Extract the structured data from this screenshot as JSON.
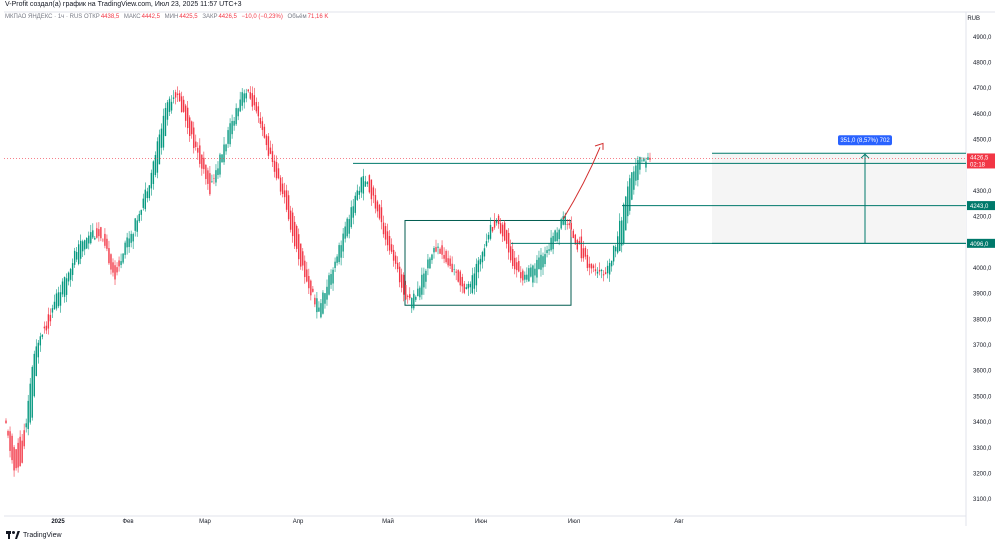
{
  "header": {
    "text": "V-Profit создал(а) график на TradingView.com, Июл 23, 2025 11:57 UTC+3"
  },
  "legend": {
    "symbol": "МКПАО ЯНДЕКС · 1ч · RUS",
    "open_label": "ОТКР",
    "open": "4438,5",
    "high_label": "МАКС",
    "high": "4442,5",
    "low_label": "МИН",
    "low": "4425,5",
    "close_label": "ЗАКР",
    "close": "4426,5",
    "change": "−10,0 (−0,23%)",
    "volume_label": "Объём",
    "volume": "71,16 K"
  },
  "currency": "RUB",
  "footer": {
    "brand": "TradingView"
  },
  "colors": {
    "up": "#089981",
    "down": "#f23645",
    "level": "#00796b",
    "measure_bg": "#2962ff",
    "grid": "#f0f3fa",
    "axis_text": "#131722"
  },
  "chart_data": {
    "type": "candlestick",
    "ylim": [
      3050,
      4950
    ],
    "y_ticks": [
      "3100,0",
      "3200,0",
      "3300,0",
      "3400,0",
      "3500,0",
      "3600,0",
      "3700,0",
      "3800,0",
      "3900,0",
      "4000,0",
      "4100,0",
      "4200,0",
      "4300,0",
      "4400,0",
      "4500,0",
      "4600,0",
      "4700,0",
      "4800,0",
      "4900,0"
    ],
    "y_tick_values": [
      3100,
      3200,
      3300,
      3400,
      3500,
      3600,
      3700,
      3800,
      3900,
      4000,
      4100,
      4200,
      4300,
      4400,
      4500,
      4600,
      4700,
      4800,
      4900
    ],
    "x_labels": [
      "2025",
      "Фев",
      "Мар",
      "Апр",
      "Май",
      "Июн",
      "Июл",
      "Авг"
    ],
    "price_series": [
      [
        3400,
        3380
      ],
      [
        3300,
        3200
      ],
      [
        3350,
        3250
      ],
      [
        3400,
        3600
      ],
      [
        3700,
        3750
      ],
      [
        3800,
        3780
      ],
      [
        3850,
        3900
      ],
      [
        3900,
        3950
      ],
      [
        4000,
        4050
      ],
      [
        4050,
        4100
      ],
      [
        4100,
        4150
      ],
      [
        4150,
        4120
      ],
      [
        4100,
        4050
      ],
      [
        4000,
        3950
      ],
      [
        4050,
        4100
      ],
      [
        4100,
        4150
      ],
      [
        4200,
        4250
      ],
      [
        4300,
        4350
      ],
      [
        4400,
        4500
      ],
      [
        4550,
        4650
      ],
      [
        4700,
        4680
      ],
      [
        4650,
        4600
      ],
      [
        4550,
        4500
      ],
      [
        4450,
        4400
      ],
      [
        4350,
        4300
      ],
      [
        4350,
        4400
      ],
      [
        4450,
        4500
      ],
      [
        4550,
        4600
      ],
      [
        4650,
        4700
      ],
      [
        4700,
        4650
      ],
      [
        4600,
        4550
      ],
      [
        4500,
        4450
      ],
      [
        4400,
        4350
      ],
      [
        4300,
        4250
      ],
      [
        4200,
        4100
      ],
      [
        4050,
        4000
      ],
      [
        3950,
        3900
      ],
      [
        3800,
        3850
      ],
      [
        3900,
        3950
      ],
      [
        4000,
        4050
      ],
      [
        4100,
        4150
      ],
      [
        4200,
        4250
      ],
      [
        4300,
        4350
      ],
      [
        4350,
        4300
      ],
      [
        4250,
        4200
      ],
      [
        4150,
        4100
      ],
      [
        4050,
        4000
      ],
      [
        3950,
        3900
      ],
      [
        3850,
        3880
      ],
      [
        3900,
        3950
      ],
      [
        4000,
        4050
      ],
      [
        4100,
        4080
      ],
      [
        4050,
        4020
      ],
      [
        4000,
        3980
      ],
      [
        3950,
        3920
      ],
      [
        3900,
        3950
      ],
      [
        4000,
        4050
      ],
      [
        4100,
        4150
      ],
      [
        4200,
        4180
      ],
      [
        4150,
        4100
      ],
      [
        4050,
        4000
      ],
      [
        3980,
        3960
      ],
      [
        3950,
        3990
      ],
      [
        4000,
        4030
      ],
      [
        4050,
        4080
      ],
      [
        4100,
        4150
      ],
      [
        4180,
        4200
      ],
      [
        4150,
        4120
      ],
      [
        4100,
        4050
      ],
      [
        4020,
        4000
      ],
      [
        3980,
        3970
      ],
      [
        3960,
        4000
      ],
      [
        4050,
        4100
      ],
      [
        4120,
        4250
      ],
      [
        4300,
        4380
      ],
      [
        4400,
        4430
      ],
      [
        4420,
        4426.5
      ]
    ],
    "horizontal_levels": [
      {
        "label": "4407,5",
        "value": 4407.5
      },
      {
        "label": "4243,0",
        "value": 4243
      },
      {
        "label": "4096,0",
        "value": 4096
      }
    ],
    "last_price": {
      "label": "4426,5",
      "countdown": "02:18",
      "value": 4426.5
    },
    "range_box": {
      "y_top": 4185,
      "y_bottom": 3855
    },
    "measure": {
      "label": "351,0 (8,57%) 702",
      "from": 4096,
      "to": 4447
    },
    "grid": false
  }
}
